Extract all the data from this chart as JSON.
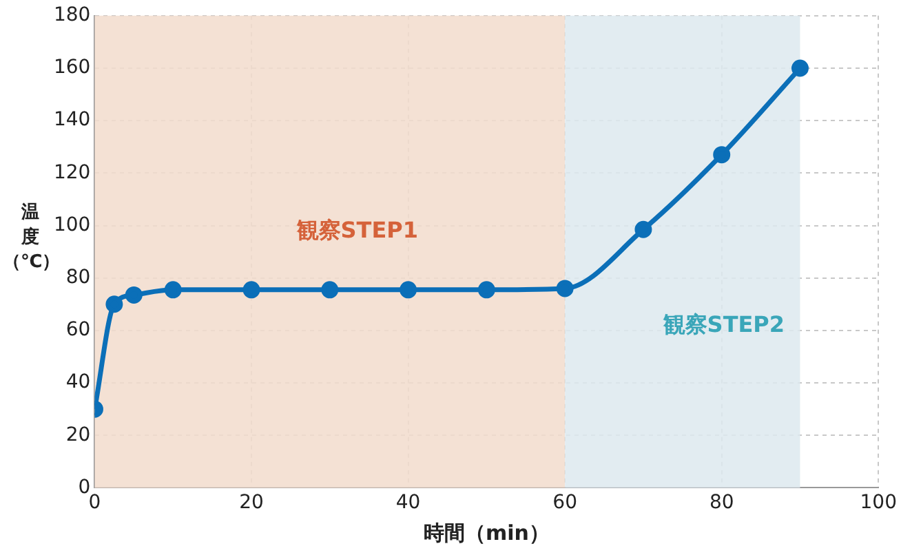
{
  "chart_data": {
    "type": "line",
    "xlabel": "時間（min）",
    "ylabel": "温度（℃）",
    "x": [
      0,
      2.5,
      5,
      10,
      20,
      30,
      40,
      50,
      60,
      70,
      80,
      90
    ],
    "series": [
      {
        "color": "#0b6fb8",
        "values": [
          30,
          70,
          73.5,
          75.5,
          75.5,
          75.5,
          75.5,
          75.5,
          76,
          98.5,
          127,
          160
        ]
      }
    ],
    "xlim": [
      0,
      100
    ],
    "xticks": [
      0,
      20,
      40,
      60,
      80,
      100
    ],
    "ylim": [
      0,
      180
    ],
    "yticks": [
      0,
      20,
      40,
      60,
      80,
      100,
      120,
      140,
      160,
      180
    ],
    "grid": true,
    "legend": false,
    "marker": "circle",
    "line_style": "solid",
    "bands": [
      {
        "axis": "x",
        "from": 0,
        "to": 60,
        "label": "観察STEP1",
        "color": "#f2dccd"
      },
      {
        "axis": "x",
        "from": 60,
        "to": 90,
        "label": "観察STEP2",
        "color": "#dde9ef"
      }
    ]
  }
}
